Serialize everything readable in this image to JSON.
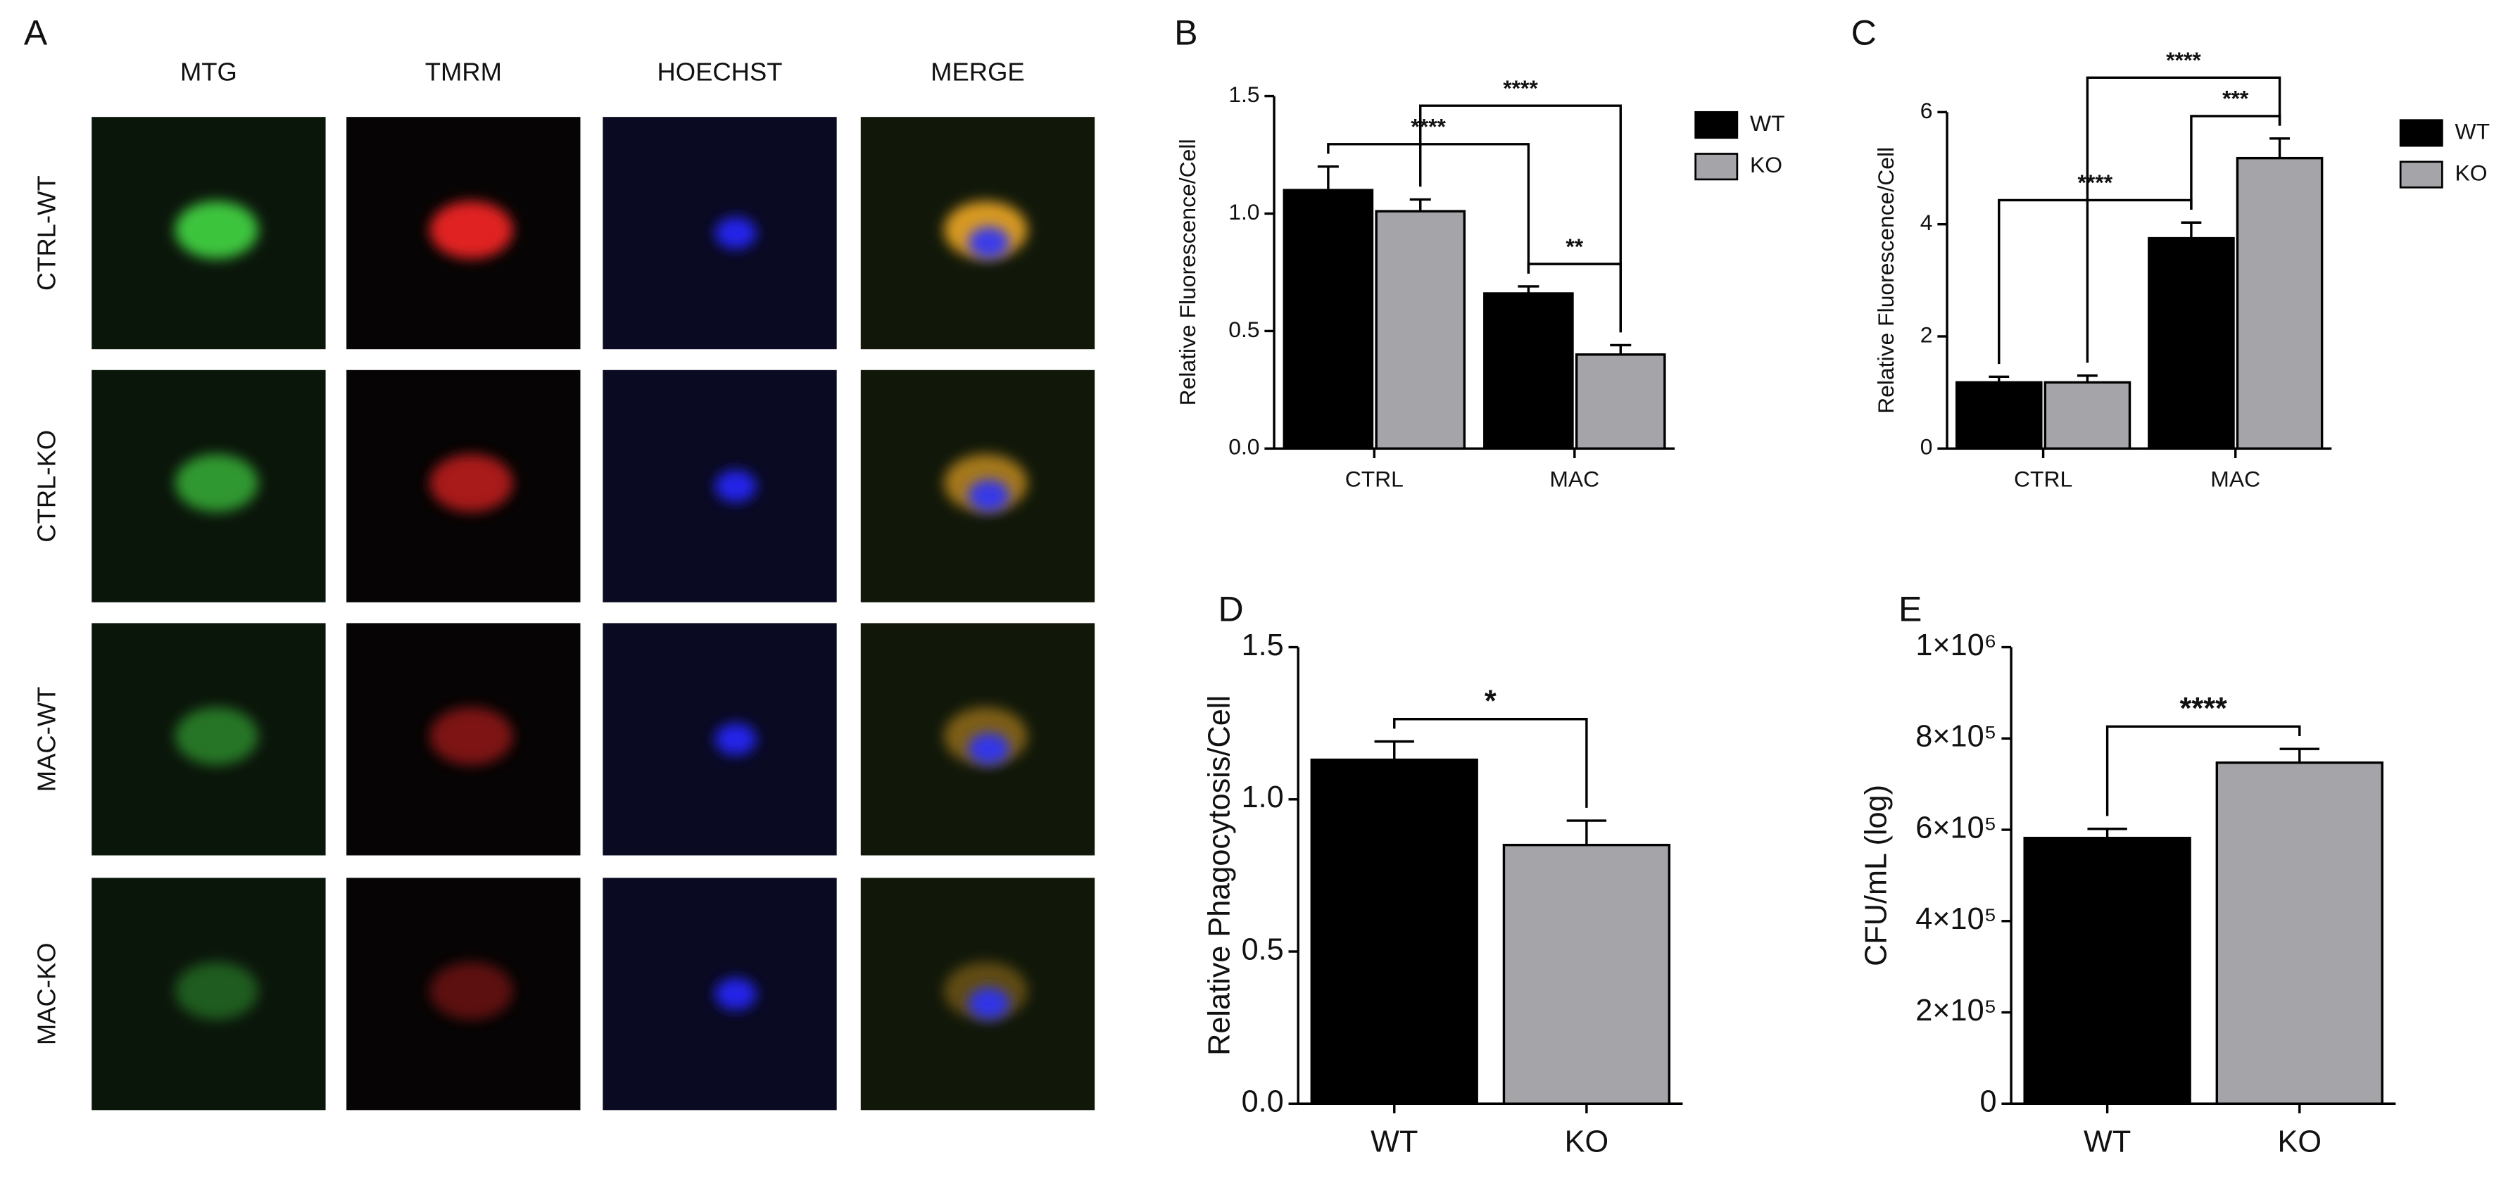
{
  "panel_a": {
    "label": "A",
    "columns": [
      "MTG",
      "TMRM",
      "HOECHST",
      "MERGE"
    ],
    "rows": [
      "CTRL-WT",
      "CTRL-KO",
      "MAC-WT",
      "MAC-KO"
    ]
  },
  "chart_data": [
    {
      "type": "bar",
      "label": "B",
      "y_label": "Relative Fluorescence/Cell",
      "categories": [
        "CTRL",
        "MAC"
      ],
      "series": [
        {
          "name": "WT",
          "color": "#000000",
          "values": [
            1.1,
            0.66
          ],
          "errors": [
            0.1,
            0.03
          ]
        },
        {
          "name": "KO",
          "color": "#a5a5a9",
          "values": [
            1.01,
            0.4
          ],
          "errors": [
            0.05,
            0.04
          ]
        }
      ],
      "ylim": [
        0,
        1.5
      ],
      "yticks": [
        {
          "value": 0,
          "label": "0.0"
        },
        {
          "value": 0.5,
          "label": "0.5"
        },
        {
          "value": 1,
          "label": "1.0"
        },
        {
          "value": 1.5,
          "label": "1.5"
        }
      ],
      "annotations": [
        {
          "text": "**",
          "between": [
            [
              0,
              1
            ],
            [
              1,
              1
            ]
          ]
        },
        {
          "text": "****",
          "between": [
            [
              0,
              0
            ],
            [
              0,
              1
            ]
          ]
        },
        {
          "text": "****",
          "between": [
            [
              1,
              0
            ],
            [
              1,
              1
            ]
          ]
        }
      ]
    },
    {
      "type": "bar",
      "label": "C",
      "y_label": "Relative Fluorescence/Cell",
      "categories": [
        "CTRL",
        "MAC"
      ],
      "series": [
        {
          "name": "WT",
          "color": "#000000",
          "values": [
            1.18,
            3.75
          ],
          "errors": [
            0.1,
            0.28
          ]
        },
        {
          "name": "KO",
          "color": "#a5a5a9",
          "values": [
            1.18,
            5.18
          ],
          "errors": [
            0.12,
            0.35
          ]
        }
      ],
      "ylim": [
        0,
        6
      ],
      "yticks": [
        0,
        2,
        4,
        6
      ],
      "annotations": [
        {
          "text": "***",
          "between": [
            [
              0,
              1
            ],
            [
              1,
              1
            ]
          ]
        },
        {
          "text": "****",
          "between": [
            [
              0,
              0
            ],
            [
              0,
              1
            ]
          ]
        },
        {
          "text": "****",
          "between": [
            [
              1,
              0
            ],
            [
              1,
              1
            ]
          ]
        }
      ]
    },
    {
      "type": "bar",
      "label": "D",
      "y_label": "Relative Phagocytosis/Cell",
      "categories": [
        "WT",
        "KO"
      ],
      "values": [
        1.13,
        0.85
      ],
      "errors": [
        0.06,
        0.08
      ],
      "colors": [
        "#000000",
        "#a5a5a9"
      ],
      "ylim": [
        0,
        1.5
      ],
      "yticks": [
        {
          "value": 0,
          "label": "0.0"
        },
        {
          "value": 0.5,
          "label": "0.5"
        },
        {
          "value": 1,
          "label": "1.0"
        },
        {
          "value": 1.5,
          "label": "1.5"
        }
      ],
      "annotations": [
        {
          "text": "*",
          "between": [
            0,
            1
          ]
        }
      ]
    },
    {
      "type": "bar",
      "label": "E",
      "y_label": "CFU/mL (log)",
      "categories": [
        "WT",
        "KO"
      ],
      "values": [
        582000,
        747000
      ],
      "errors": [
        20000,
        30000
      ],
      "colors": [
        "#000000",
        "#a5a5a9"
      ],
      "ylim": [
        0,
        1000000
      ],
      "yticks": [
        0,
        {
          "value": 200000,
          "label": "2×10⁵"
        },
        {
          "value": 400000,
          "label": "4×10⁵"
        },
        {
          "value": 600000,
          "label": "6×10⁵"
        },
        {
          "value": 800000,
          "label": "8×10⁵"
        },
        {
          "value": 1000000,
          "label": "1×10⁶"
        }
      ],
      "annotations": [
        {
          "text": "****",
          "between": [
            0,
            1
          ]
        }
      ]
    }
  ]
}
